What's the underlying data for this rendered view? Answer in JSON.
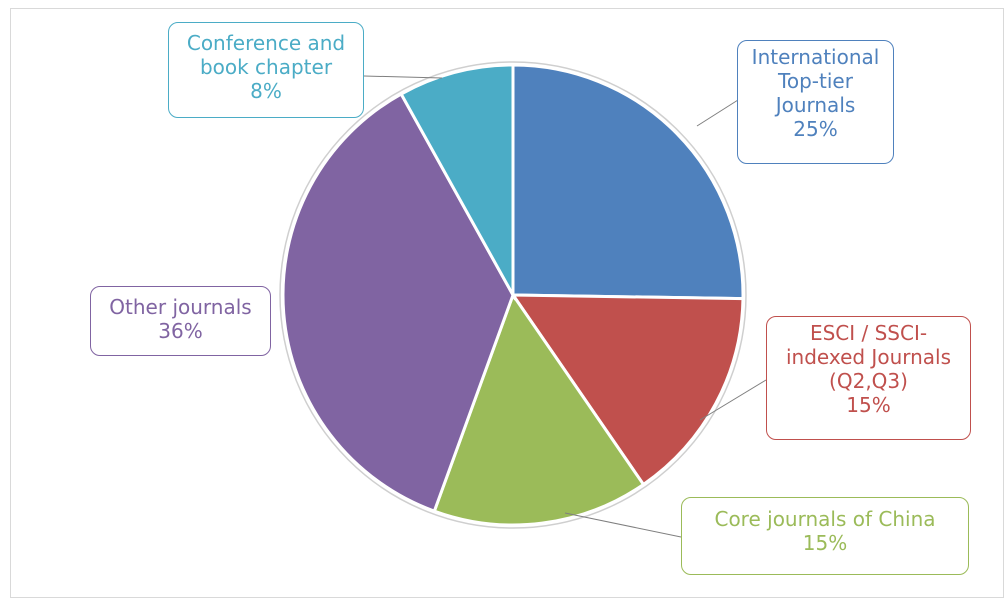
{
  "chart_data": {
    "type": "pie",
    "slices": [
      {
        "name": "International Top-tier Journals",
        "value": 25,
        "percent_label": "25%",
        "color": "#4F81BD"
      },
      {
        "name": "ESCI / SSCI-indexed Journals (Q2,Q3)",
        "value": 15,
        "percent_label": "15%",
        "color": "#C0504D"
      },
      {
        "name": "Core journals of China",
        "value": 15,
        "percent_label": "15%",
        "color": "#9BBB59"
      },
      {
        "name": "Other journals",
        "value": 36,
        "percent_label": "36%",
        "color": "#8064A2"
      },
      {
        "name": "Conference and book chapter",
        "value": 8,
        "percent_label": "8%",
        "color": "#4BACC6"
      }
    ]
  }
}
